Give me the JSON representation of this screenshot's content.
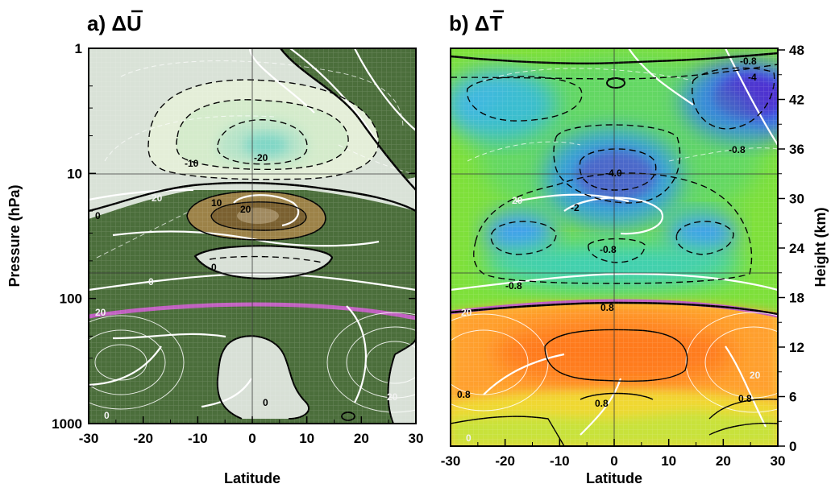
{
  "chart_data": [
    {
      "type": "heatmap",
      "panel_label": "a)",
      "variable": "ΔU",
      "title": "a) ΔŪ",
      "xlabel": "Latitude",
      "ylabel": "Pressure (hPa)",
      "xlim": [
        -30,
        30
      ],
      "ylim": [
        1000,
        1
      ],
      "y_scale": "log",
      "x_ticks": [
        -30,
        -20,
        -10,
        0,
        10,
        20,
        30
      ],
      "x_tick_labels": [
        "-30",
        "-20",
        "-10",
        "0",
        "10",
        "20",
        "30"
      ],
      "y_ticks": [
        1,
        10,
        100,
        1000
      ],
      "y_tick_labels": [
        "1",
        "10",
        "100",
        "1000"
      ],
      "grid": true,
      "contour_labels_dashed": [
        "-10",
        "-20",
        "-20"
      ],
      "contour_labels_solid": [
        "10",
        "20",
        "0",
        "0",
        "0",
        "20",
        "0"
      ],
      "background_contour_labels": [
        "20",
        "0",
        "20",
        "0"
      ],
      "colors": {
        "negative_light": "#e6f0dc",
        "negative_core": "#8fd8c8",
        "positive_brown": "#8a7040",
        "fill_green": "#4b6e3b",
        "zero_region": "#d8e0d6",
        "tropopause": "#c060c0"
      }
    },
    {
      "type": "heatmap",
      "panel_label": "b)",
      "variable": "ΔT",
      "title": "b) ΔT̄",
      "xlabel": "Latitude",
      "ylabel_right": "Height (km)",
      "xlim": [
        -30,
        30
      ],
      "ylim": [
        1000,
        1
      ],
      "y_scale": "log",
      "x_ticks": [
        -30,
        -20,
        -10,
        0,
        10,
        20,
        30
      ],
      "x_tick_labels": [
        "-30",
        "-20",
        "-10",
        "0",
        "10",
        "20",
        "30"
      ],
      "height_ticks_km": [
        0,
        6,
        12,
        18,
        24,
        30,
        36,
        42,
        48
      ],
      "height_tick_labels": [
        "0",
        "6",
        "12",
        "18",
        "24",
        "30",
        "36",
        "42",
        "48"
      ],
      "grid": true,
      "contour_labels": [
        "-0.8",
        "-4",
        "-0.8",
        "-4.0",
        "-2",
        "-0.8",
        "-0.8",
        "0.8",
        "0.8",
        "0.8",
        "0.8"
      ],
      "background_contour_labels": [
        "20",
        "0",
        "20",
        "20",
        "0",
        "20",
        "0"
      ],
      "colors": {
        "cold_blue": "#3a6cf0",
        "cold_violet": "#6a30d0",
        "neutral_green": "#7ee03a",
        "warm_orange": "#ff8828",
        "warm_yellow": "#f0d830",
        "tropopause": "#c060c0"
      }
    }
  ]
}
